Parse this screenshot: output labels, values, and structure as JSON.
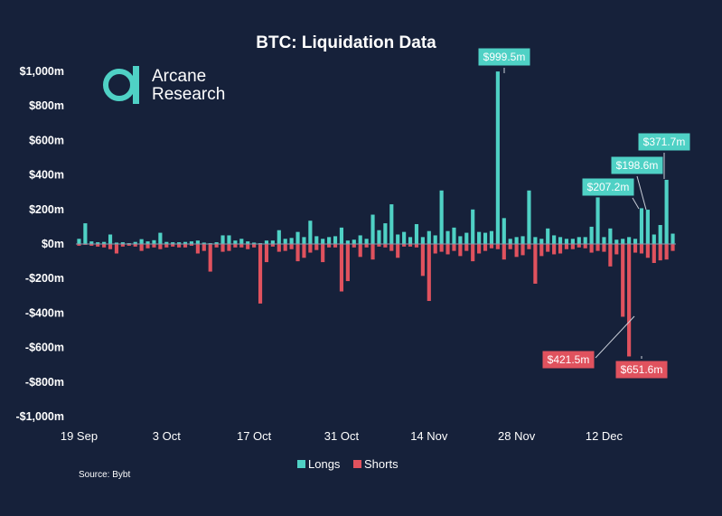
{
  "chart_data": {
    "type": "bar",
    "title": "BTC: Liquidation Data",
    "source": "Source: Bybt",
    "ylim": [
      -1000,
      1000
    ],
    "unit": "millions USD",
    "y_ticks": [
      {
        "value": 1000,
        "label": "$1,000m"
      },
      {
        "value": 800,
        "label": "$800m"
      },
      {
        "value": 600,
        "label": "$600m"
      },
      {
        "value": 400,
        "label": "$400m"
      },
      {
        "value": 200,
        "label": "$200m"
      },
      {
        "value": 0,
        "label": "$0m"
      },
      {
        "value": -200,
        "label": "-$200m"
      },
      {
        "value": -400,
        "label": "-$400m"
      },
      {
        "value": -600,
        "label": "-$600m"
      },
      {
        "value": -800,
        "label": "-$800m"
      },
      {
        "value": -1000,
        "label": "-$1,000m"
      }
    ],
    "x_ticks": [
      {
        "index": 0,
        "label": "19 Sep"
      },
      {
        "index": 14,
        "label": "3 Oct"
      },
      {
        "index": 28,
        "label": "17 Oct"
      },
      {
        "index": 42,
        "label": "31 Oct"
      },
      {
        "index": 56,
        "label": "14 Nov"
      },
      {
        "index": 70,
        "label": "28 Nov"
      },
      {
        "index": 84,
        "label": "12 Dec"
      }
    ],
    "series": [
      {
        "name": "Longs",
        "color": "#4fd1c5",
        "values": [
          30,
          120,
          15,
          10,
          12,
          55,
          8,
          10,
          5,
          12,
          28,
          15,
          22,
          65,
          12,
          10,
          10,
          12,
          15,
          20,
          8,
          5,
          10,
          50,
          50,
          20,
          30,
          15,
          8,
          5,
          20,
          20,
          80,
          30,
          35,
          70,
          40,
          135,
          45,
          30,
          40,
          45,
          95,
          20,
          25,
          50,
          30,
          170,
          80,
          120,
          230,
          55,
          70,
          40,
          115,
          40,
          75,
          50,
          310,
          75,
          95,
          45,
          65,
          200,
          70,
          65,
          75,
          999.5,
          150,
          30,
          40,
          45,
          310,
          40,
          30,
          90,
          50,
          40,
          30,
          30,
          40,
          40,
          100,
          270,
          40,
          90,
          25,
          30,
          40,
          30,
          207.2,
          198.6,
          55,
          110,
          371.7,
          60
        ]
      },
      {
        "name": "Shorts",
        "color": "#e0525e",
        "values": [
          -10,
          -5,
          -10,
          -15,
          -20,
          -30,
          -55,
          -15,
          -10,
          -15,
          -40,
          -25,
          -20,
          -30,
          -20,
          -15,
          -20,
          -20,
          -10,
          -55,
          -40,
          -160,
          -20,
          -45,
          -40,
          -20,
          -20,
          -30,
          -20,
          -345,
          -105,
          -15,
          -45,
          -40,
          -30,
          -100,
          -80,
          -50,
          -35,
          -105,
          -20,
          -20,
          -275,
          -215,
          -20,
          -75,
          -20,
          -90,
          -15,
          -20,
          -40,
          -80,
          -15,
          -15,
          -20,
          -185,
          -330,
          -55,
          -45,
          -60,
          -40,
          -70,
          -40,
          -100,
          -55,
          -40,
          -25,
          -30,
          -90,
          -30,
          -75,
          -65,
          -30,
          -230,
          -70,
          -45,
          -60,
          -55,
          -30,
          -30,
          -20,
          -25,
          -50,
          -40,
          -45,
          -130,
          -60,
          -421.5,
          -651.6,
          -50,
          -55,
          -80,
          -110,
          -95,
          -90,
          -40
        ]
      }
    ],
    "annotations": [
      {
        "label": "$999.5m",
        "series": "Longs"
      },
      {
        "label": "$371.7m",
        "series": "Longs"
      },
      {
        "label": "$198.6m",
        "series": "Longs"
      },
      {
        "label": "$207.2m",
        "series": "Longs"
      },
      {
        "label": "$421.5m",
        "series": "Shorts"
      },
      {
        "label": "$651.6m",
        "series": "Shorts"
      }
    ],
    "legend": [
      {
        "label": "Longs",
        "color": "#4fd1c5"
      },
      {
        "label": "Shorts",
        "color": "#e0525e"
      }
    ],
    "legend_position": "bottom-center"
  },
  "logo": {
    "line1": "Arcane",
    "line2": "Research",
    "color": "#4fd1c5"
  },
  "colors": {
    "background": "#16213a",
    "longs": "#4fd1c5",
    "shorts": "#e0525e"
  }
}
